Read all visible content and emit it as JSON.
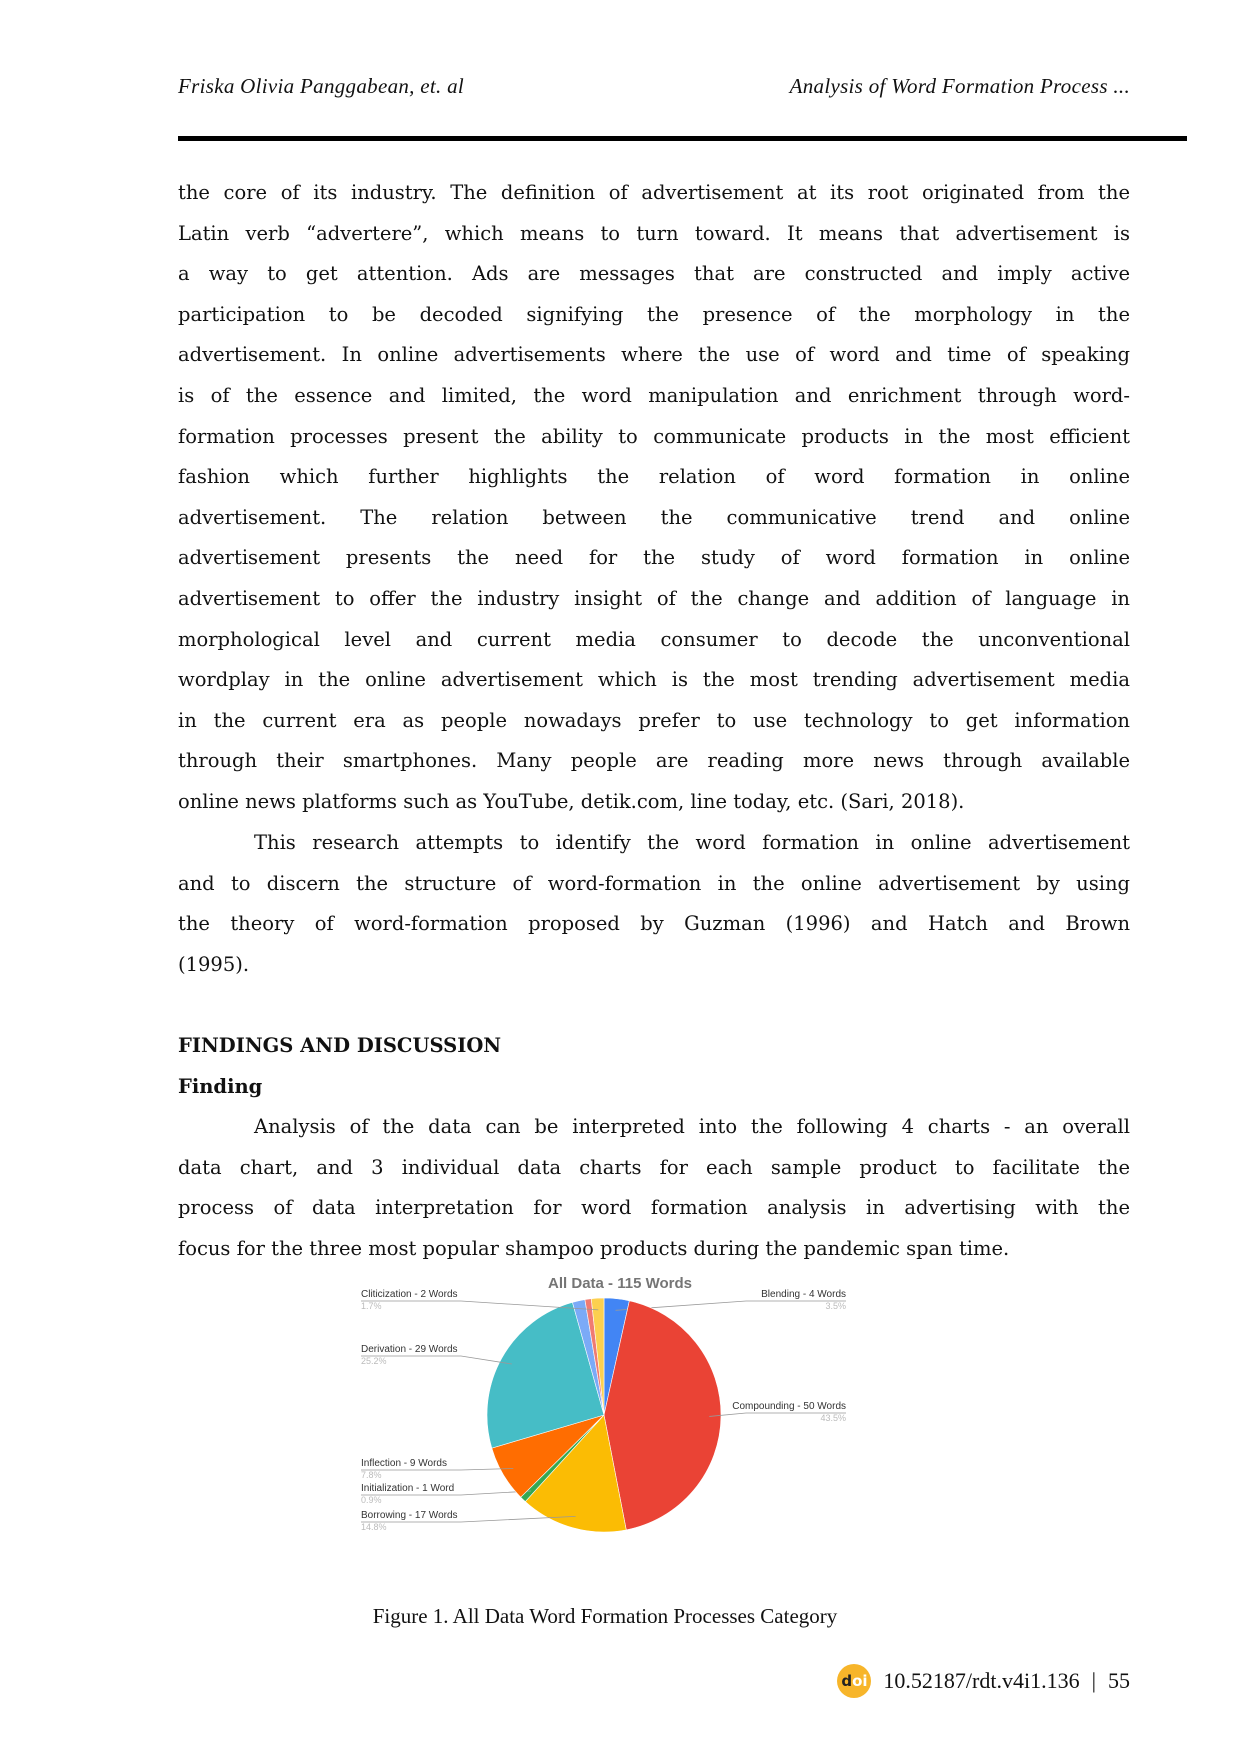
{
  "header": {
    "left": "Friska Olivia Panggabean, et. al",
    "right": "Analysis of Word Formation Process ..."
  },
  "paragraph1": [
    "the core of its industry. The definition of advertisement at its root originated from the",
    "Latin verb “advertere”, which means to turn toward. It means that advertisement is",
    "a way to get attention. Ads are messages that are constructed and imply active",
    "participation to be decoded signifying the presence of the morphology in the",
    "advertisement. In online advertisements where the use of word and time of speaking",
    "is of the essence and limited, the word manipulation and enrichment through word-",
    "formation processes present the ability to communicate products in the most efficient",
    "fashion which further highlights the relation of word formation in online",
    "advertisement.     The relation between the communicative trend and online",
    "advertisement presents the need for the study of word formation in online",
    "advertisement to offer the industry insight of the change and addition of language in",
    "morphological level and current media consumer to decode the unconventional",
    "wordplay in the online advertisement which is the most trending advertisement media",
    "in the current era as people nowadays prefer to use technology to get information",
    "through their smartphones. Many people are reading more news through available",
    "online news platforms such as YouTube, detik.com, line today, etc.  (Sari, 2018)."
  ],
  "paragraph2": [
    "This research attempts to identify the word formation in online advertisement",
    "and to discern the structure of word-formation in the online advertisement by using",
    "the theory of word-formation proposed by Guzman (1996) and Hatch and Brown",
    "(1995)."
  ],
  "section_heading": "FINDINGS AND DISCUSSION",
  "subsection_heading": "Finding",
  "paragraph3": [
    "Analysis of the data can be interpreted into the following 4 charts - an overall",
    "data chart, and 3 individual data charts for each sample product to facilitate the",
    "process of data interpretation for word formation analysis in advertising with the",
    "focus for the three most popular shampoo products during the pandemic span time."
  ],
  "chart_data": {
    "type": "pie",
    "title": "All Data - 115 Words",
    "start": "top",
    "direction": "clockwise",
    "slices": [
      {
        "label": "Blending - 4 Words",
        "percent": "3.5%",
        "value": 4,
        "color": "#4285f4",
        "side": "right"
      },
      {
        "label": "Compounding - 50 Words",
        "percent": "43.5%",
        "value": 50,
        "color": "#ea4335",
        "side": "right"
      },
      {
        "label": "Borrowing - 17 Words",
        "percent": "14.8%",
        "value": 17,
        "color": "#fbbc04",
        "side": "left"
      },
      {
        "label": "Initialization - 1 Word",
        "percent": "0.9%",
        "value": 1,
        "color": "#34a853",
        "side": "left"
      },
      {
        "label": "Inflection - 9 Words",
        "percent": "7.8%",
        "value": 9,
        "color": "#ff6d01",
        "side": "left"
      },
      {
        "label": "Derivation - 29 Words",
        "percent": "25.2%",
        "value": 29,
        "color": "#46bdc6",
        "side": "left"
      },
      {
        "label": "",
        "percent": "",
        "value": 2,
        "color": "#7baaf7",
        "side": ""
      },
      {
        "label": "",
        "percent": "",
        "value": 1,
        "color": "#f07b72",
        "side": ""
      },
      {
        "label": "Cliticization - 2 Words",
        "percent": "1.7%",
        "value": 2,
        "color": "#fcd04f",
        "side": "left"
      }
    ]
  },
  "caption": "Figure 1. All Data Word Formation Processes Category",
  "footer": {
    "doi_logo": "doi",
    "doi": "10.52187/rdt.v4i1.136",
    "page": "55"
  }
}
